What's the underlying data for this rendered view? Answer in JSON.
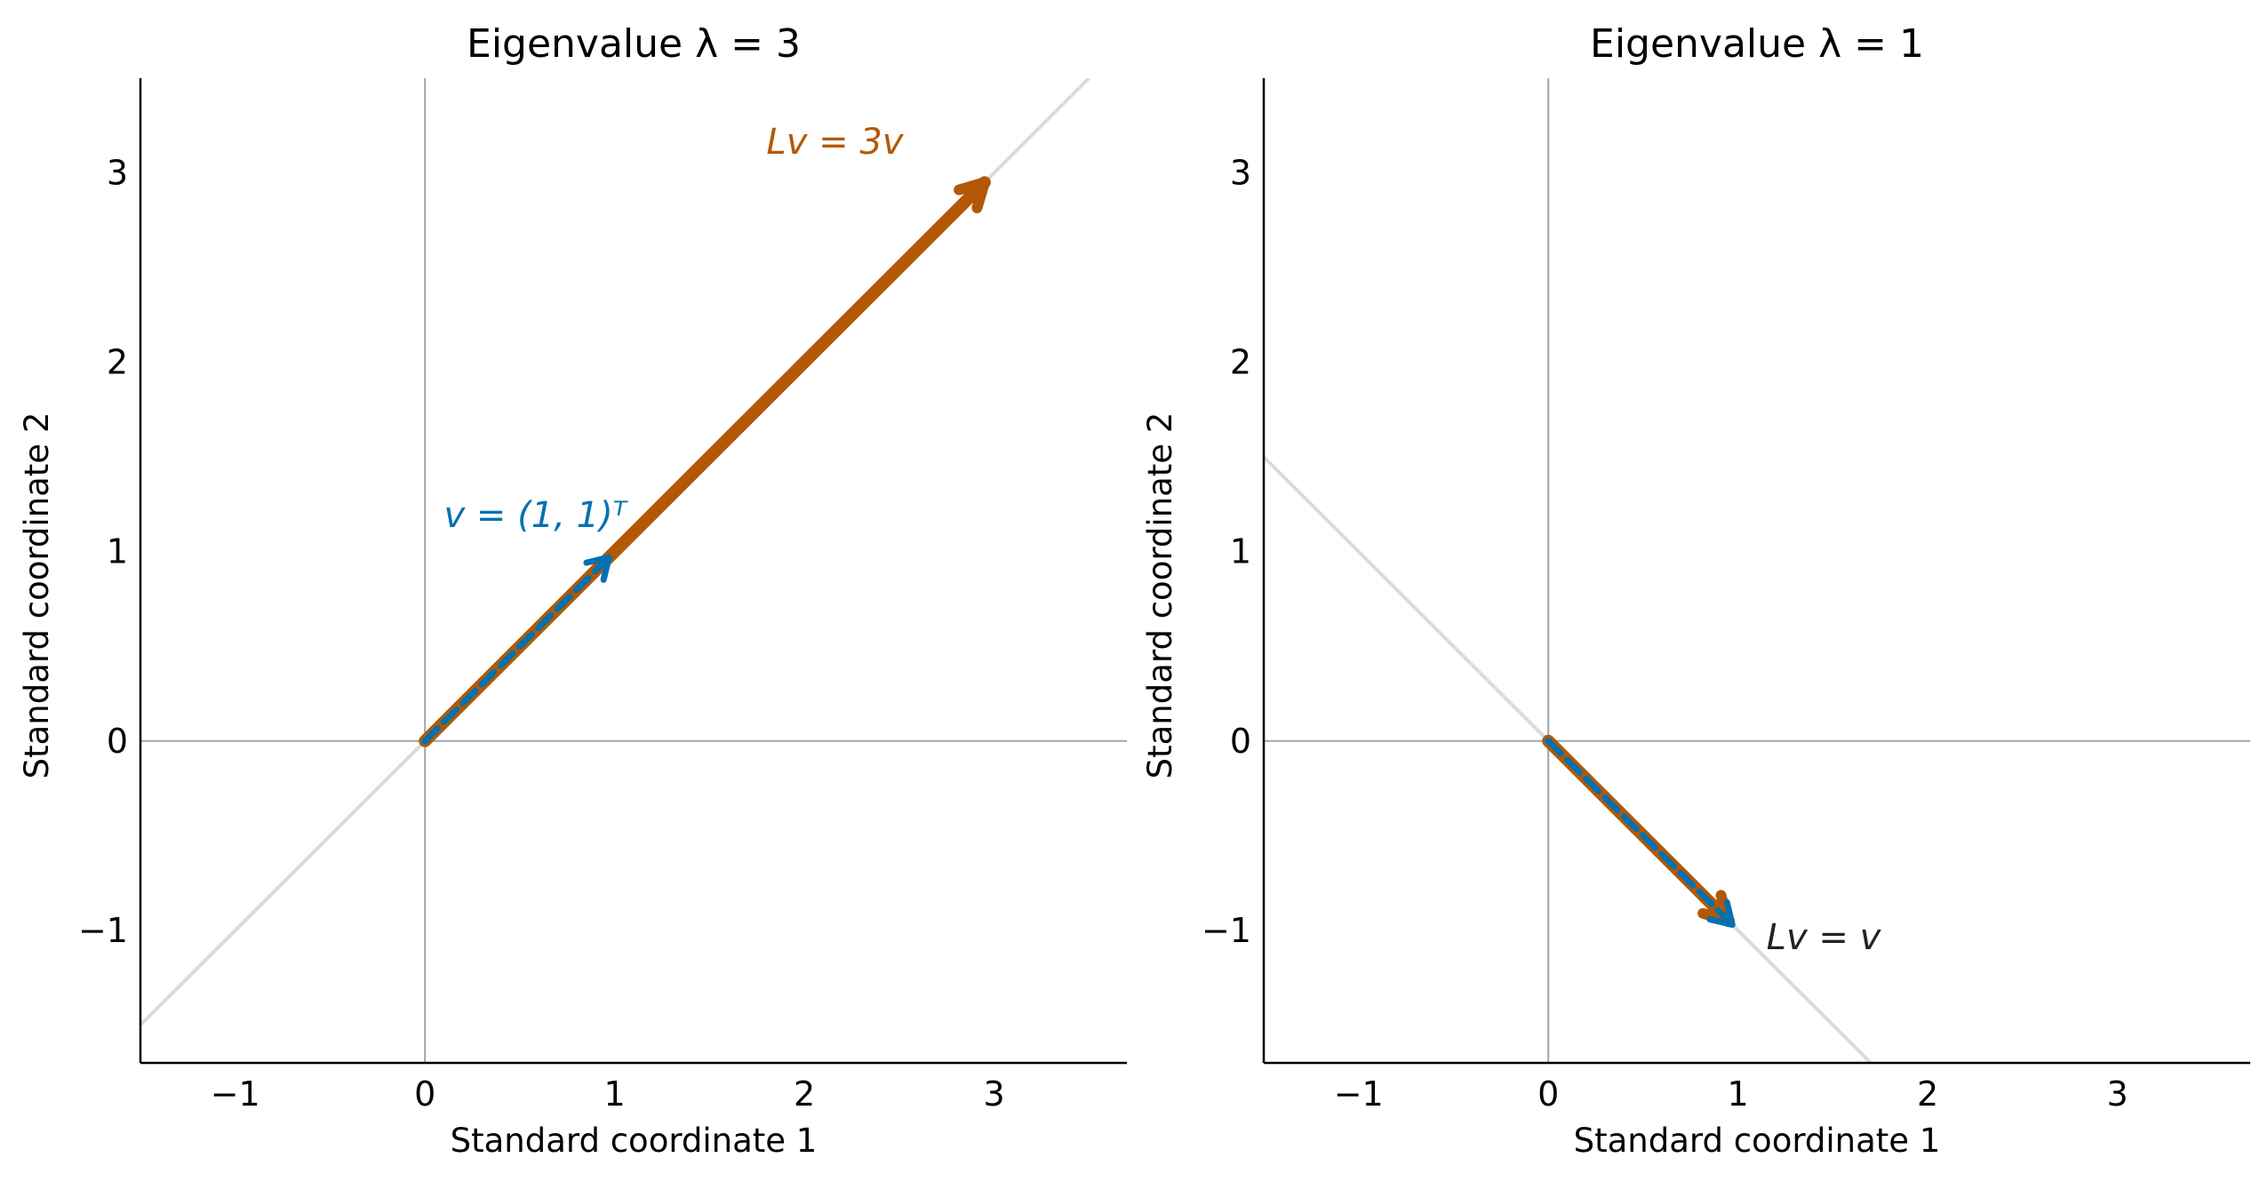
{
  "chart_data": [
    {
      "type": "vector",
      "title": "Eigenvalue λ = 3",
      "xlabel": "Standard coordinate 1",
      "ylabel": "Standard coordinate 2",
      "xlim": [
        -1.5,
        3.7
      ],
      "ylim": [
        -1.7,
        3.5
      ],
      "xticks": [
        -1,
        0,
        1,
        2,
        3
      ],
      "yticks": [
        -1,
        0,
        1,
        2,
        3
      ],
      "xtick_labels": [
        "−1",
        "0",
        "1",
        "2",
        "3"
      ],
      "ytick_labels": [
        "−1",
        "0",
        "1",
        "2",
        "3"
      ],
      "grid": false,
      "eigenline": {
        "slope": 1,
        "color": "#d9dcdc"
      },
      "vectors": [
        {
          "from": [
            0,
            0
          ],
          "to": [
            2.95,
            2.95
          ],
          "color": "#b35806",
          "style": "solid",
          "label": "Lv = 3v",
          "label_at": [
            1.8,
            3.1
          ]
        },
        {
          "from": [
            0,
            0
          ],
          "to": [
            0.97,
            0.97
          ],
          "color": "#0571b0",
          "style": "dashed",
          "label": "v = (1, 1)ᵀ",
          "label_at": [
            0.1,
            1.13
          ]
        }
      ]
    },
    {
      "type": "vector",
      "title": "Eigenvalue λ = 1",
      "xlabel": "Standard coordinate 1",
      "ylabel": "Standard coordinate 2",
      "xlim": [
        -1.5,
        3.7
      ],
      "ylim": [
        -1.7,
        3.5
      ],
      "xticks": [
        -1,
        0,
        1,
        2,
        3
      ],
      "yticks": [
        -1,
        0,
        1,
        2,
        3
      ],
      "xtick_labels": [
        "−1",
        "0",
        "1",
        "2",
        "3"
      ],
      "ytick_labels": [
        "−1",
        "0",
        "1",
        "2",
        "3"
      ],
      "grid": false,
      "eigenline": {
        "slope": -1,
        "color": "#d9dcdc"
      },
      "vectors": [
        {
          "from": [
            0,
            0
          ],
          "to": [
            0.95,
            -0.95
          ],
          "color": "#b35806",
          "style": "solid",
          "label": "",
          "label_at": null
        },
        {
          "from": [
            0,
            0
          ],
          "to": [
            0.97,
            -0.97
          ],
          "color": "#0571b0",
          "style": "dashed",
          "label": "",
          "label_at": null
        }
      ],
      "annotation": {
        "text": "Lv = v",
        "at": [
          1.15,
          -1.1
        ],
        "color": "#222222"
      }
    }
  ],
  "colors": {
    "axis_zero_line": "#9aa8ad",
    "spine": "#000000",
    "background": "#ffffff"
  }
}
